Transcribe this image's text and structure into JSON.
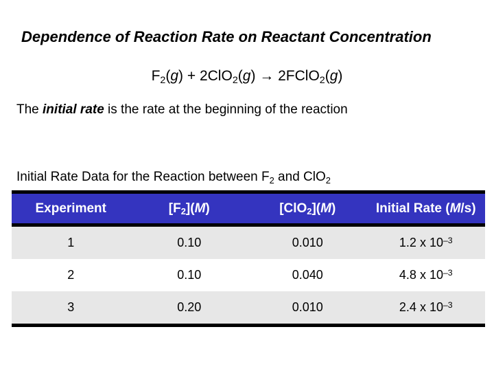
{
  "title": "Dependence of Reaction Rate on Reactant Concentration",
  "equation": [
    {
      "t": "F"
    },
    {
      "t": "2",
      "sub": true
    },
    {
      "t": "("
    },
    {
      "t": "g",
      "i": true
    },
    {
      "t": ") + 2ClO"
    },
    {
      "t": "2",
      "sub": true
    },
    {
      "t": "("
    },
    {
      "t": "g",
      "i": true
    },
    {
      "t": ") → 2FClO"
    },
    {
      "t": "2",
      "sub": true
    },
    {
      "t": "("
    },
    {
      "t": "g",
      "i": true
    },
    {
      "t": ")"
    }
  ],
  "body_text": [
    {
      "t": "The "
    },
    {
      "t": "initial rate",
      "b": true,
      "i": true
    },
    {
      "t": " is the rate at the beginning of the reaction"
    }
  ],
  "table": {
    "caption": [
      {
        "t": "Initial Rate Data for the Reaction between F"
      },
      {
        "t": "2",
        "sub": true
      },
      {
        "t": " and ClO"
      },
      {
        "t": "2",
        "sub": true
      }
    ],
    "headers": [
      [
        {
          "t": "Experiment"
        }
      ],
      [
        {
          "t": "[F"
        },
        {
          "t": "2",
          "sub": true
        },
        {
          "t": "]("
        },
        {
          "t": "M",
          "i": true
        },
        {
          "t": ")"
        }
      ],
      [
        {
          "t": "[ClO"
        },
        {
          "t": "2",
          "sub": true
        },
        {
          "t": "]("
        },
        {
          "t": "M",
          "i": true
        },
        {
          "t": ")"
        }
      ],
      [
        {
          "t": "Initial Rate ("
        },
        {
          "t": "M",
          "i": true
        },
        {
          "t": "/s)"
        }
      ]
    ],
    "rows": [
      {
        "experiment": "1",
        "f2": "0.10",
        "clo2": "0.010",
        "rate": [
          {
            "t": "1.2 x 10"
          },
          {
            "t": "–3",
            "sup": true
          }
        ]
      },
      {
        "experiment": "2",
        "f2": "0.10",
        "clo2": "0.040",
        "rate": [
          {
            "t": "4.8 x 10"
          },
          {
            "t": "–3",
            "sup": true
          }
        ]
      },
      {
        "experiment": "3",
        "f2": "0.20",
        "clo2": "0.010",
        "rate": [
          {
            "t": "2.4 x 10"
          },
          {
            "t": "–3",
            "sup": true
          }
        ]
      }
    ]
  },
  "colors": {
    "header-bg": "#3434bf",
    "header-text": "#ffffff",
    "row-alt-bg": "#e7e7e7",
    "border": "#000000"
  }
}
